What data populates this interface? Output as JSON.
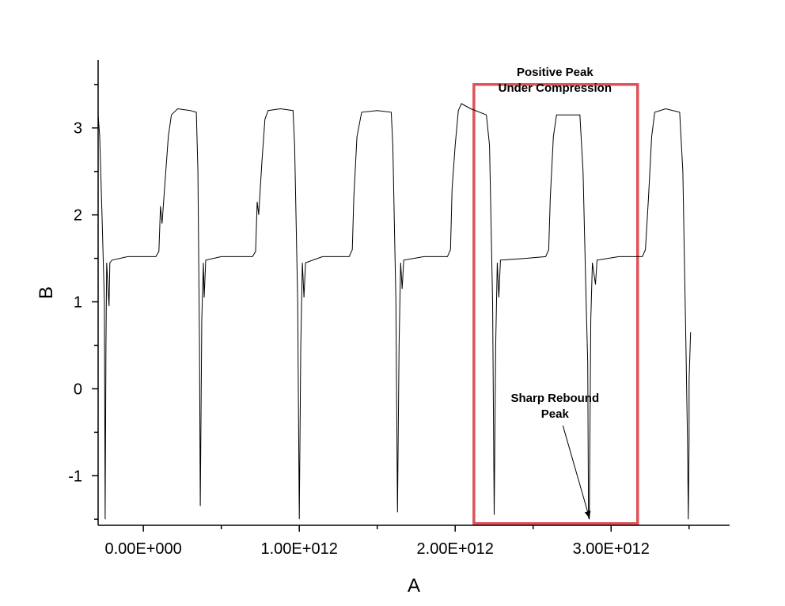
{
  "chart_data": {
    "type": "line",
    "title": "",
    "xlabel": "A",
    "ylabel": "B",
    "xlim": [
      -290000000000.0,
      3760000000000.0
    ],
    "ylim": [
      -1.57,
      3.78
    ],
    "xticks": [
      0,
      1000000000000.0,
      2000000000000.0,
      3000000000000.0
    ],
    "xtick_labels": [
      "0.00E+000",
      "1.00E+012",
      "2.00E+012",
      "3.00E+012"
    ],
    "yticks": [
      -1,
      0,
      1,
      2,
      3
    ],
    "ytick_labels": [
      "-1",
      "0",
      "1",
      "2",
      "3"
    ],
    "grid": false,
    "legend": "none",
    "series_color": "#000000",
    "highlight_box_color": "#e05257",
    "highlight_box": {
      "x": [
        2120000000000.0,
        3170000000000.0
      ],
      "y": [
        -1.55,
        3.5
      ]
    },
    "annotations": [
      {
        "lines": [
          "Positive Peak",
          "Under Compression"
        ],
        "x": 2640000000000.0,
        "y": 3.6
      },
      {
        "lines": [
          "Sharp Rebound",
          "Peak"
        ],
        "x": 2640000000000.0,
        "y": -0.15,
        "arrow_to": {
          "x": 2860000000000.0,
          "y": -1.48
        }
      }
    ],
    "series": [
      {
        "points": [
          [
            -290000000000.0,
            3.15
          ],
          [
            -280000000000.0,
            2.9
          ],
          [
            -265000000000.0,
            2.0
          ],
          [
            -250000000000.0,
            1.0
          ],
          [
            -245000000000.0,
            -1.5
          ],
          [
            -240000000000.0,
            0.5
          ],
          [
            -235000000000.0,
            1.45
          ],
          [
            -220000000000.0,
            0.95
          ],
          [
            -215000000000.0,
            1.45
          ],
          [
            -200000000000.0,
            1.48
          ],
          [
            -100000000000.0,
            1.52
          ],
          [
            80000000000.0,
            1.52
          ],
          [
            100000000000.0,
            1.58
          ],
          [
            110000000000.0,
            2.1
          ],
          [
            120000000000.0,
            1.9
          ],
          [
            140000000000.0,
            2.4
          ],
          [
            160000000000.0,
            2.9
          ],
          [
            180000000000.0,
            3.15
          ],
          [
            220000000000.0,
            3.22
          ],
          [
            300000000000.0,
            3.2
          ],
          [
            340000000000.0,
            3.18
          ],
          [
            350000000000.0,
            2.5
          ],
          [
            360000000000.0,
            0.5
          ],
          [
            365000000000.0,
            -1.35
          ],
          [
            375000000000.0,
            0.8
          ],
          [
            385000000000.0,
            1.45
          ],
          [
            390000000000.0,
            1.05
          ],
          [
            400000000000.0,
            1.48
          ],
          [
            500000000000.0,
            1.52
          ],
          [
            700000000000.0,
            1.52
          ],
          [
            720000000000.0,
            1.58
          ],
          [
            730000000000.0,
            2.15
          ],
          [
            740000000000.0,
            2.0
          ],
          [
            760000000000.0,
            2.6
          ],
          [
            780000000000.0,
            3.1
          ],
          [
            800000000000.0,
            3.2
          ],
          [
            880000000000.0,
            3.22
          ],
          [
            960000000000.0,
            3.2
          ],
          [
            970000000000.0,
            2.8
          ],
          [
            990000000000.0,
            1.0
          ],
          [
            1000000000000.0,
            -1.5
          ],
          [
            1010000000000.0,
            0.5
          ],
          [
            1020000000000.0,
            1.45
          ],
          [
            1030000000000.0,
            1.05
          ],
          [
            1040000000000.0,
            1.45
          ],
          [
            1150000000000.0,
            1.52
          ],
          [
            1320000000000.0,
            1.52
          ],
          [
            1340000000000.0,
            1.6
          ],
          [
            1350000000000.0,
            2.2
          ],
          [
            1370000000000.0,
            2.9
          ],
          [
            1400000000000.0,
            3.18
          ],
          [
            1500000000000.0,
            3.2
          ],
          [
            1590000000000.0,
            3.18
          ],
          [
            1600000000000.0,
            2.8
          ],
          [
            1620000000000.0,
            1.0
          ],
          [
            1630000000000.0,
            -1.42
          ],
          [
            1640000000000.0,
            0.5
          ],
          [
            1650000000000.0,
            1.45
          ],
          [
            1660000000000.0,
            1.15
          ],
          [
            1670000000000.0,
            1.48
          ],
          [
            1800000000000.0,
            1.52
          ],
          [
            1950000000000.0,
            1.52
          ],
          [
            1970000000000.0,
            1.6
          ],
          [
            1980000000000.0,
            2.3
          ],
          [
            2000000000000.0,
            2.8
          ],
          [
            2020000000000.0,
            3.2
          ],
          [
            2040000000000.0,
            3.28
          ],
          [
            2100000000000.0,
            3.22
          ],
          [
            2200000000000.0,
            3.15
          ],
          [
            2220000000000.0,
            2.8
          ],
          [
            2240000000000.0,
            1.0
          ],
          [
            2250000000000.0,
            -1.45
          ],
          [
            2260000000000.0,
            0.5
          ],
          [
            2270000000000.0,
            1.45
          ],
          [
            2280000000000.0,
            1.05
          ],
          [
            2290000000000.0,
            1.48
          ],
          [
            2450000000000.0,
            1.5
          ],
          [
            2580000000000.0,
            1.52
          ],
          [
            2600000000000.0,
            1.6
          ],
          [
            2610000000000.0,
            2.2
          ],
          [
            2630000000000.0,
            2.9
          ],
          [
            2650000000000.0,
            3.15
          ],
          [
            2800000000000.0,
            3.15
          ],
          [
            2820000000000.0,
            2.5
          ],
          [
            2840000000000.0,
            1.0
          ],
          [
            2850000000000.0,
            0.3
          ],
          [
            2855000000000.0,
            -1.48
          ],
          [
            2860000000000.0,
            -1.5
          ],
          [
            2870000000000.0,
            0.8
          ],
          [
            2880000000000.0,
            1.45
          ],
          [
            2900000000000.0,
            1.2
          ],
          [
            2910000000000.0,
            1.48
          ],
          [
            3050000000000.0,
            1.52
          ],
          [
            3200000000000.0,
            1.52
          ],
          [
            3220000000000.0,
            1.6
          ],
          [
            3240000000000.0,
            2.2
          ],
          [
            3260000000000.0,
            2.9
          ],
          [
            3280000000000.0,
            3.18
          ],
          [
            3350000000000.0,
            3.22
          ],
          [
            3440000000000.0,
            3.18
          ],
          [
            3460000000000.0,
            2.5
          ],
          [
            3480000000000.0,
            0.5
          ],
          [
            3490000000000.0,
            -0.6
          ],
          [
            3495000000000.0,
            -1.5
          ],
          [
            3500000000000.0,
            -0.6
          ],
          [
            3500000000000.0,
            0.1
          ],
          [
            3510000000000.0,
            0.65
          ]
        ]
      }
    ]
  }
}
